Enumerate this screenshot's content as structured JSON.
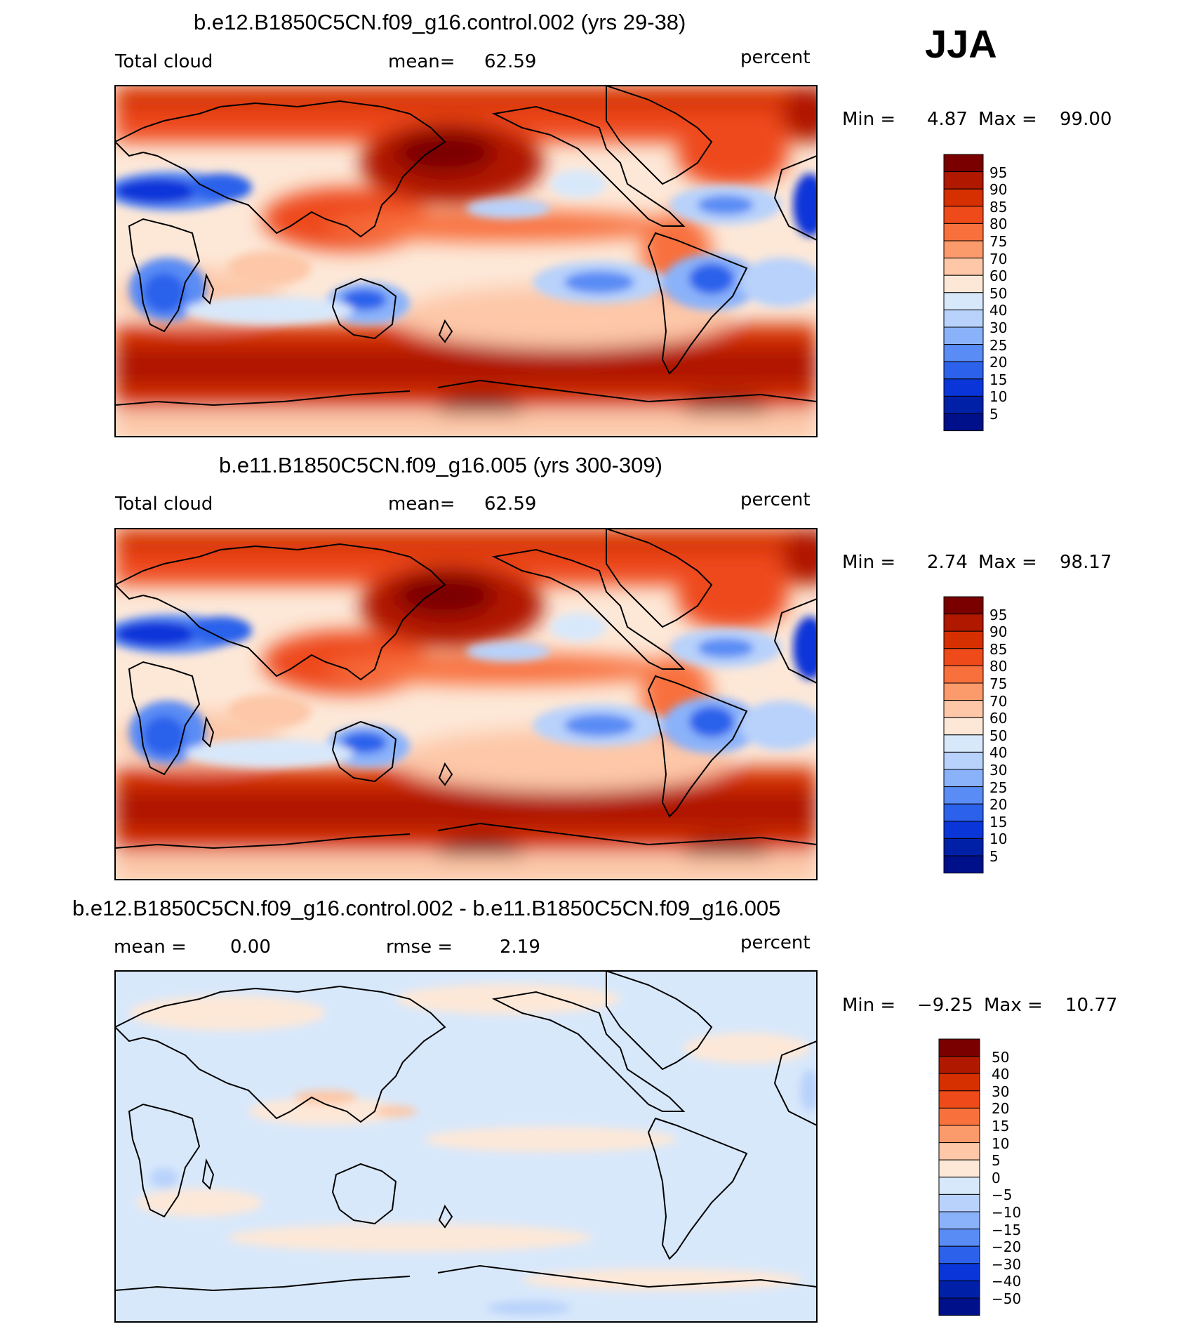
{
  "season": "JJA",
  "chart_data": [
    {
      "type": "heatmap",
      "title": "b.e12.B1850C5CN.f09_g16.control.002 (yrs 29-38)",
      "variable": "Total cloud",
      "stat_label": "mean=",
      "stat_value": "62.59",
      "units": "percent",
      "min_label": "Min =",
      "min_value": "4.87",
      "max_label": "Max =",
      "max_value": "99.00",
      "colorbar": {
        "levels": [
          "95",
          "90",
          "85",
          "80",
          "75",
          "70",
          "60",
          "50",
          "40",
          "30",
          "25",
          "20",
          "15",
          "10",
          "5"
        ],
        "colors": [
          "#7a0000",
          "#b01800",
          "#d63000",
          "#ee4a1a",
          "#f8703c",
          "#fb9a6a",
          "#fdc7a8",
          "#fde8d8",
          "#d8e8fb",
          "#b8d2fb",
          "#8ab2fa",
          "#5a8cf5",
          "#2c62eb",
          "#0a36d9",
          "#0020a8",
          "#00108a"
        ]
      }
    },
    {
      "type": "heatmap",
      "title": "b.e11.B1850C5CN.f09_g16.005 (yrs 300-309)",
      "variable": "Total cloud",
      "stat_label": "mean=",
      "stat_value": "62.59",
      "units": "percent",
      "min_label": "Min =",
      "min_value": "2.74",
      "max_label": "Max =",
      "max_value": "98.17",
      "colorbar": {
        "levels": [
          "95",
          "90",
          "85",
          "80",
          "75",
          "70",
          "60",
          "50",
          "40",
          "30",
          "25",
          "20",
          "15",
          "10",
          "5"
        ],
        "colors": [
          "#7a0000",
          "#b01800",
          "#d63000",
          "#ee4a1a",
          "#f8703c",
          "#fb9a6a",
          "#fdc7a8",
          "#fde8d8",
          "#d8e8fb",
          "#b8d2fb",
          "#8ab2fa",
          "#5a8cf5",
          "#2c62eb",
          "#0a36d9",
          "#0020a8",
          "#00108a"
        ]
      }
    },
    {
      "type": "heatmap",
      "title": "b.e12.B1850C5CN.f09_g16.control.002 - b.e11.B1850C5CN.f09_g16.005",
      "stat_label": "mean =",
      "stat_value": "0.00",
      "rmse_label": "rmse =",
      "rmse_value": "2.19",
      "units": "percent",
      "min_label": "Min =",
      "min_value": "−9.25",
      "max_label": "Max =",
      "max_value": "10.77",
      "colorbar": {
        "levels": [
          "50",
          "40",
          "30",
          "20",
          "15",
          "10",
          "5",
          "0",
          "−5",
          "−10",
          "−15",
          "−20",
          "−30",
          "−40",
          "−50"
        ],
        "colors": [
          "#7a0000",
          "#b01800",
          "#d63000",
          "#ee4a1a",
          "#f8703c",
          "#fb9a6a",
          "#fdc7a8",
          "#fde8d8",
          "#d8e8fb",
          "#b8d2fb",
          "#8ab2fa",
          "#5a8cf5",
          "#2c62eb",
          "#0a36d9",
          "#0020a8",
          "#00108a"
        ]
      }
    }
  ]
}
